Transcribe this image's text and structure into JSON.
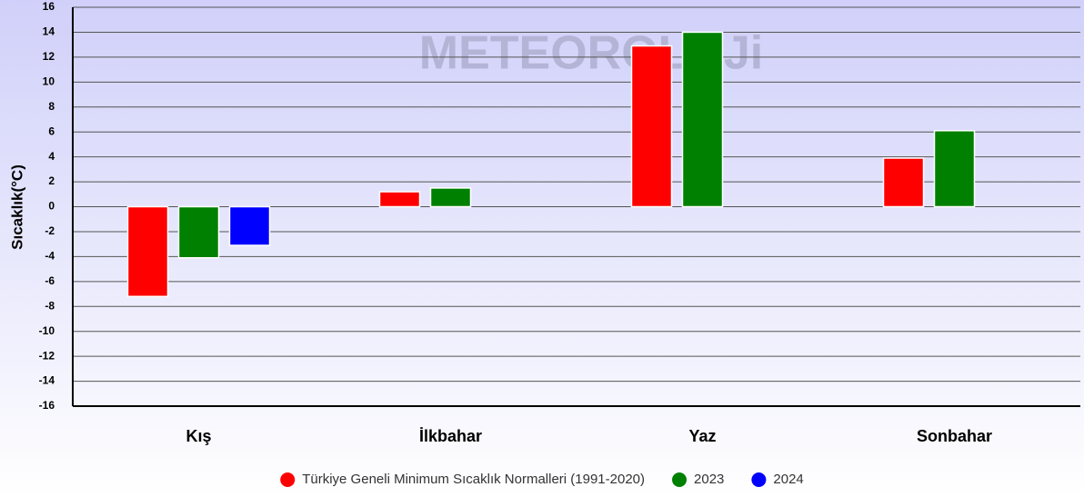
{
  "chart_data": {
    "type": "bar",
    "watermark": "METEOROLOJi",
    "ylabel": "Sıcaklık(°C)",
    "categories": [
      "Kış",
      "İlkbahar",
      "Yaz",
      "Sonbahar"
    ],
    "series": [
      {
        "name": "Türkiye Geneli Minimum Sıcaklık Normalleri (1991-2020)",
        "color": "#ff0000",
        "values": [
          -7.2,
          1.2,
          12.9,
          3.9
        ]
      },
      {
        "name": "2023",
        "color": "#008000",
        "values": [
          -4.1,
          1.5,
          14.0,
          6.1
        ]
      },
      {
        "name": "2024",
        "color": "#0000ff",
        "values": [
          -3.1,
          null,
          null,
          null
        ]
      }
    ],
    "ylim": [
      -16,
      16
    ],
    "yticks": [
      -16,
      -14,
      -12,
      -10,
      -8,
      -6,
      -4,
      -2,
      0,
      2,
      4,
      6,
      8,
      10,
      12,
      14,
      16
    ],
    "grid": true,
    "legend": "bottom"
  }
}
